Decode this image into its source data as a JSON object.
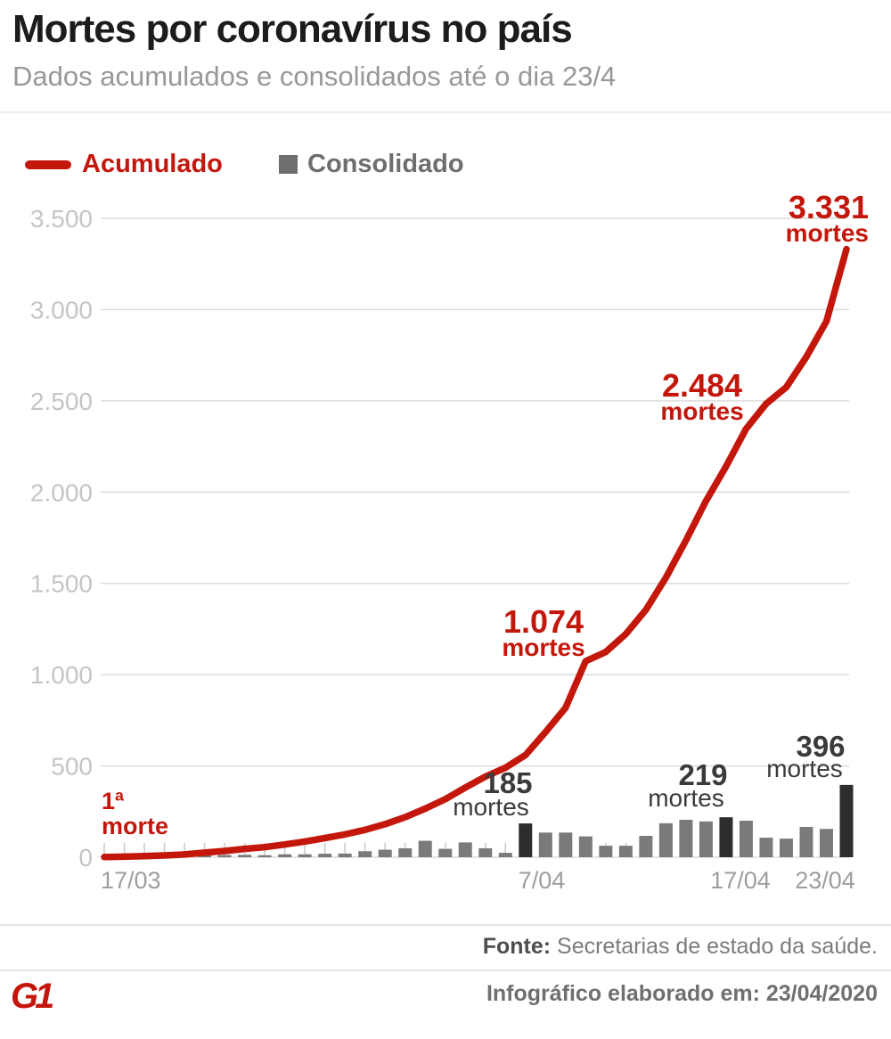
{
  "header": {
    "title": "Mortes por coronavírus no país",
    "subtitle": "Dados acumulados e consolidados até o dia 23/4"
  },
  "legend": {
    "acumulado": "Acumulado",
    "consolidado": "Consolidado"
  },
  "colors": {
    "accent_red": "#c4170c",
    "bar_gray": "#7a7a7a",
    "bar_dark": "#2d2d2d",
    "grid": "#dcdcdc",
    "tick": "#c9c9c9",
    "y_label": "#c5c5c5",
    "x_label": "#9e9e9e",
    "dark_text": "#3a3a3a"
  },
  "chart_data": {
    "type": "combo",
    "title": "Mortes por coronavírus no país",
    "subtitle": "Dados acumulados e consolidados até o dia 23/4",
    "x": [
      "17/03",
      "18/03",
      "19/03",
      "20/03",
      "21/03",
      "22/03",
      "23/03",
      "24/03",
      "25/03",
      "26/03",
      "27/03",
      "28/03",
      "29/03",
      "30/03",
      "31/03",
      "01/04",
      "02/04",
      "03/04",
      "04/04",
      "05/04",
      "06/04",
      "07/04",
      "08/04",
      "09/04",
      "10/04",
      "11/04",
      "12/04",
      "13/04",
      "14/04",
      "15/04",
      "16/04",
      "17/04",
      "18/04",
      "19/04",
      "20/04",
      "21/04",
      "22/04",
      "23/04"
    ],
    "series": [
      {
        "name": "Acumulado",
        "type": "line",
        "color": "#c4170c",
        "values": [
          1,
          3,
          6,
          10,
          15,
          25,
          34,
          46,
          55,
          70,
          86,
          105,
          125,
          150,
          181,
          219,
          266,
          318,
          381,
          442,
          490,
          560,
          686,
          819,
          1074,
          1124,
          1223,
          1355,
          1532,
          1736,
          1952,
          2141,
          2347,
          2484,
          2575,
          2741,
          2935,
          3331
        ]
      },
      {
        "name": "Consolidado",
        "type": "bar",
        "color": "#7a7a7a",
        "highlight_color": "#2d2d2d",
        "highlighted_indices": [
          21,
          31,
          37
        ],
        "values": [
          1,
          2,
          3,
          4,
          5,
          10,
          12,
          13,
          11,
          16,
          16,
          19,
          20,
          33,
          41,
          49,
          90,
          46,
          81,
          49,
          24,
          185,
          135,
          135,
          114,
          63,
          63,
          117,
          186,
          205,
          196,
          219,
          200,
          107,
          102,
          166,
          155,
          396
        ]
      }
    ],
    "ylim": [
      0,
      3500
    ],
    "grid": true,
    "legend_position": "top-left",
    "y_ticks": [
      {
        "v": 0,
        "label": "0"
      },
      {
        "v": 500,
        "label": "500"
      },
      {
        "v": 1000,
        "label": "1.000"
      },
      {
        "v": 1500,
        "label": "1.500"
      },
      {
        "v": 2000,
        "label": "2.000"
      },
      {
        "v": 2500,
        "label": "2.500"
      },
      {
        "v": 3000,
        "label": "3.000"
      },
      {
        "v": 3500,
        "label": "3.500"
      }
    ],
    "x_ticks": [
      {
        "index": 0,
        "label": "17/03"
      },
      {
        "index": 21,
        "label": "7/04"
      },
      {
        "index": 31,
        "label": "17/04"
      },
      {
        "index": 37,
        "label": "23/04"
      }
    ],
    "annotations": {
      "first_death": {
        "line1": "1ª",
        "line2": "morte",
        "day": 0,
        "series": "Acumulado"
      },
      "milestone_1074": {
        "value": "1.074",
        "unit": "mortes",
        "day": 24,
        "series": "Acumulado"
      },
      "milestone_2484": {
        "value": "2.484",
        "unit": "mortes",
        "day": 33,
        "series": "Acumulado"
      },
      "milestone_3331": {
        "value": "3.331",
        "unit": "mortes",
        "day": 37,
        "series": "Acumulado"
      },
      "bar_185": {
        "value": "185",
        "unit": "mortes",
        "day": 21,
        "series": "Consolidado"
      },
      "bar_219": {
        "value": "219",
        "unit": "mortes",
        "day": 31,
        "series": "Consolidado"
      },
      "bar_396": {
        "value": "396",
        "unit": "mortes",
        "day": 37,
        "series": "Consolidado"
      }
    }
  },
  "footer": {
    "source_label": "Fonte:",
    "source_text": " Secretarias de estado da saúde.",
    "credit": "Infográfico elaborado em: 23/04/2020",
    "logo": "G1"
  }
}
